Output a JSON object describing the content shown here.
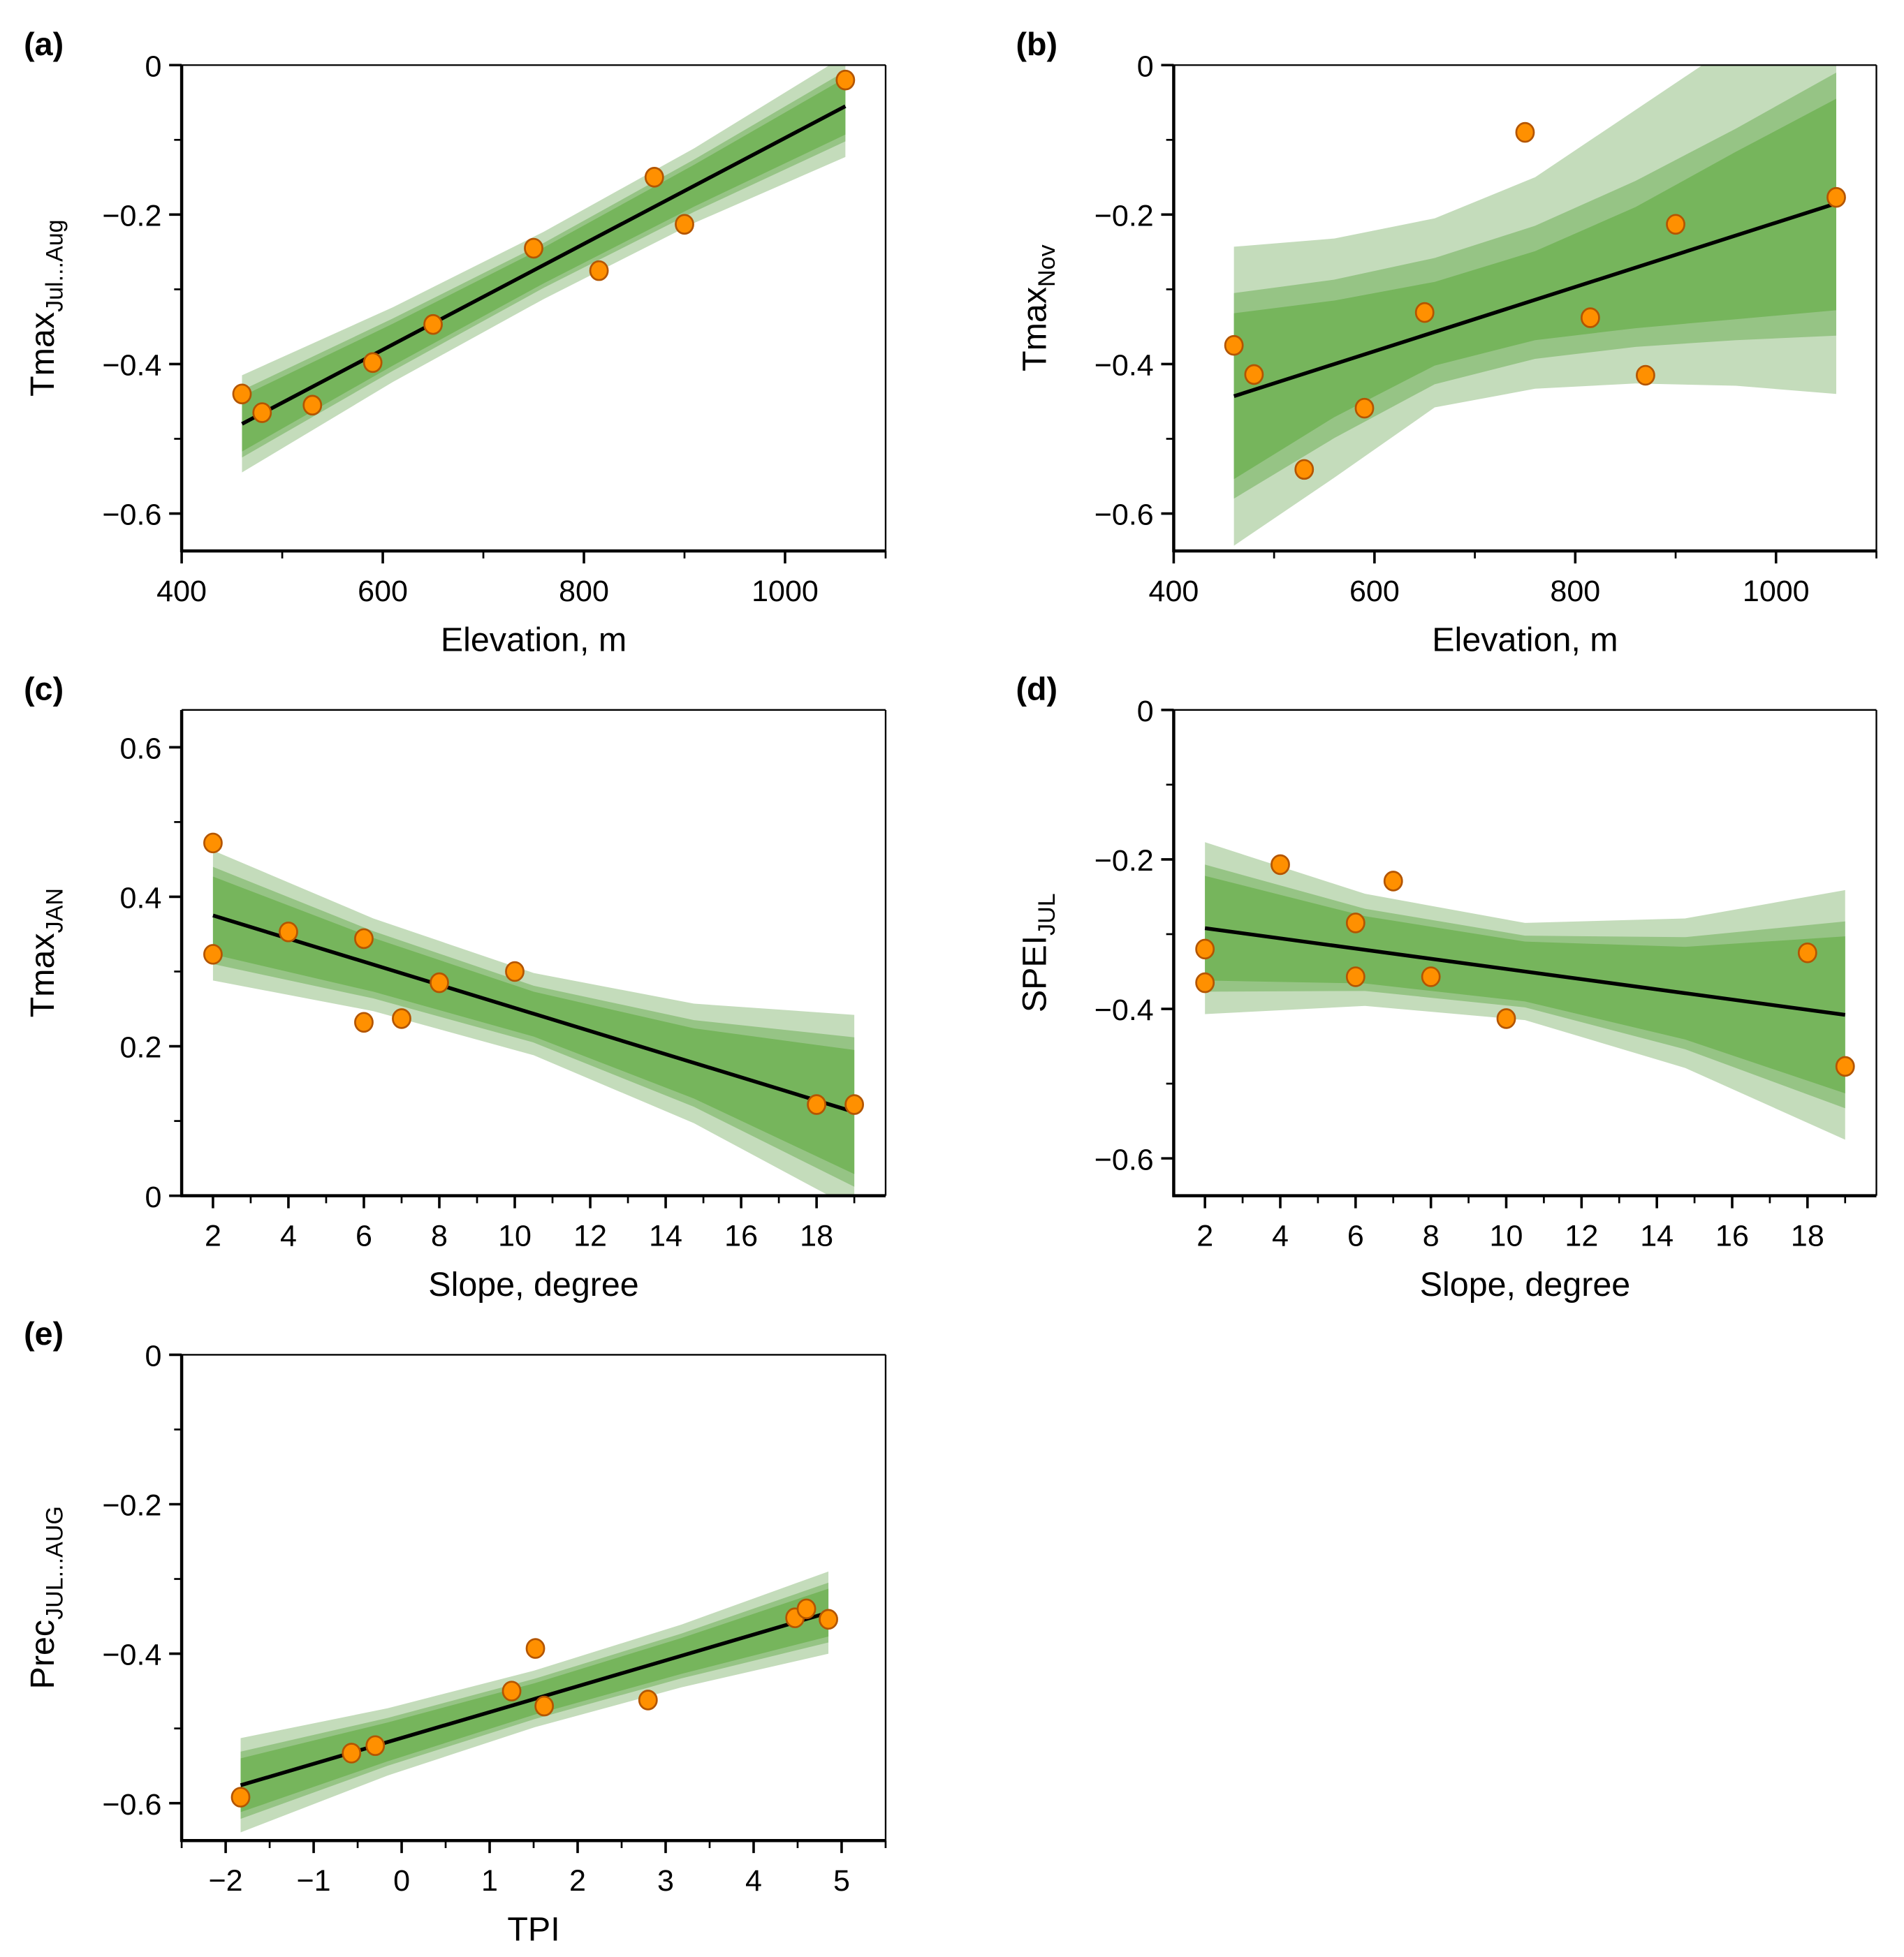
{
  "colors": {
    "band_outer": "#c4dcbb",
    "band_mid": "#96c485",
    "band_inner": "#76b55c",
    "line": "#000000",
    "point_fill": "#ff9000",
    "point_edge": "#b35500"
  },
  "chart_data": [
    {
      "panel": "(a)",
      "type": "scatter",
      "xlabel": "Elevation, m",
      "ylabel_main": "Tmax",
      "ylabel_sub": "Jul...Aug",
      "xlim": [
        400,
        1100
      ],
      "ylim": [
        -0.65,
        0
      ],
      "xticks": [
        400,
        600,
        800,
        1000
      ],
      "xtick_labels": [
        "400",
        "600",
        "800",
        "1000"
      ],
      "xminor_step": 100,
      "yticks": [
        -0.6,
        -0.4,
        -0.2,
        0
      ],
      "ytick_labels": [
        "−0.6",
        "−0.4",
        "−0.2",
        "0"
      ],
      "yminor_step": 0.1,
      "points": [
        [
          460,
          -0.44
        ],
        [
          480,
          -0.465
        ],
        [
          530,
          -0.455
        ],
        [
          590,
          -0.398
        ],
        [
          650,
          -0.347
        ],
        [
          750,
          -0.245
        ],
        [
          815,
          -0.275
        ],
        [
          870,
          -0.15
        ],
        [
          900,
          -0.213
        ],
        [
          1060,
          -0.02
        ]
      ],
      "fit_line": [
        [
          460,
          -0.48
        ],
        [
          1060,
          -0.055
        ]
      ],
      "bands": {
        "x": [
          460,
          610,
          760,
          910,
          1060
        ],
        "outer": [
          [
            -0.545,
            -0.415
          ],
          [
            -0.424,
            -0.324
          ],
          [
            -0.313,
            -0.223
          ],
          [
            -0.211,
            -0.111
          ],
          [
            -0.123,
            0.013
          ]
        ],
        "mid": [
          [
            -0.525,
            -0.435
          ],
          [
            -0.409,
            -0.339
          ],
          [
            -0.298,
            -0.238
          ],
          [
            -0.196,
            -0.126
          ],
          [
            -0.102,
            -0.008
          ]
        ],
        "inner": [
          [
            -0.517,
            -0.443
          ],
          [
            -0.402,
            -0.346
          ],
          [
            -0.292,
            -0.244
          ],
          [
            -0.189,
            -0.133
          ],
          [
            -0.093,
            -0.017
          ]
        ]
      }
    },
    {
      "panel": "(b)",
      "type": "scatter",
      "xlabel": "Elevation, m",
      "ylabel_main": "Tmax",
      "ylabel_sub": "Nov",
      "xlim": [
        400,
        1100
      ],
      "ylim": [
        -0.65,
        0
      ],
      "xticks": [
        400,
        600,
        800,
        1000
      ],
      "xtick_labels": [
        "400",
        "600",
        "800",
        "1000"
      ],
      "xminor_step": 100,
      "yticks": [
        -0.6,
        -0.4,
        -0.2,
        0
      ],
      "ytick_labels": [
        "−0.6",
        "−0.4",
        "−0.2",
        "0"
      ],
      "yminor_step": 0.1,
      "points": [
        [
          460,
          -0.375
        ],
        [
          480,
          -0.414
        ],
        [
          530,
          -0.541
        ],
        [
          590,
          -0.459
        ],
        [
          650,
          -0.331
        ],
        [
          750,
          -0.09
        ],
        [
          815,
          -0.338
        ],
        [
          870,
          -0.415
        ],
        [
          900,
          -0.213
        ],
        [
          1060,
          -0.177
        ]
      ],
      "fit_line": [
        [
          460,
          -0.443
        ],
        [
          1060,
          -0.185
        ]
      ],
      "bands": {
        "x": [
          460,
          560,
          660,
          760,
          860,
          960,
          1060
        ],
        "outer": [
          [
            -0.643,
            -0.243
          ],
          [
            -0.552,
            -0.232
          ],
          [
            -0.458,
            -0.205
          ],
          [
            -0.433,
            -0.15
          ],
          [
            -0.426,
            -0.06
          ],
          [
            -0.429,
            0.03
          ],
          [
            -0.44,
            0.12
          ]
        ],
        "mid": [
          [
            -0.58,
            -0.305
          ],
          [
            -0.499,
            -0.287
          ],
          [
            -0.427,
            -0.258
          ],
          [
            -0.393,
            -0.215
          ],
          [
            -0.377,
            -0.155
          ],
          [
            -0.368,
            -0.085
          ],
          [
            -0.362,
            -0.01
          ]
        ],
        "inner": [
          [
            -0.554,
            -0.332
          ],
          [
            -0.471,
            -0.315
          ],
          [
            -0.402,
            -0.29
          ],
          [
            -0.368,
            -0.249
          ],
          [
            -0.352,
            -0.19
          ],
          [
            -0.34,
            -0.116
          ],
          [
            -0.328,
            -0.045
          ]
        ]
      }
    },
    {
      "panel": "(c)",
      "type": "scatter",
      "xlabel": "Slope, degree",
      "ylabel_main": "Tmax",
      "ylabel_sub": "JAN",
      "xlim": [
        1.17,
        19.83
      ],
      "ylim": [
        0,
        0.65
      ],
      "xticks": [
        2,
        4,
        6,
        8,
        10,
        12,
        14,
        16,
        18
      ],
      "xtick_labels": [
        "2",
        "4",
        "6",
        "8",
        "10",
        "12",
        "14",
        "16",
        "18"
      ],
      "xminor_step": 1,
      "yticks": [
        0,
        0.2,
        0.4,
        0.6
      ],
      "ytick_labels": [
        "0",
        "0.2",
        "0.4",
        "0.6"
      ],
      "yminor_step": 0.1,
      "points": [
        [
          2,
          0.472
        ],
        [
          2,
          0.323
        ],
        [
          4,
          0.353
        ],
        [
          6,
          0.344
        ],
        [
          6,
          0.232
        ],
        [
          7,
          0.237
        ],
        [
          8,
          0.285
        ],
        [
          10,
          0.3
        ],
        [
          18,
          0.122
        ],
        [
          19,
          0.122
        ]
      ],
      "fit_line": [
        [
          2,
          0.375
        ],
        [
          19,
          0.112
        ]
      ],
      "bands": {
        "x": [
          2,
          6.25,
          10.5,
          14.75,
          19
        ],
        "outer": [
          [
            0.288,
            0.462
          ],
          [
            0.247,
            0.371
          ],
          [
            0.188,
            0.298
          ],
          [
            0.097,
            0.257
          ],
          [
            -0.018,
            0.242
          ]
        ],
        "mid": [
          [
            0.31,
            0.44
          ],
          [
            0.264,
            0.354
          ],
          [
            0.205,
            0.281
          ],
          [
            0.119,
            0.235
          ],
          [
            0.012,
            0.212
          ]
        ],
        "inner": [
          [
            0.323,
            0.427
          ],
          [
            0.273,
            0.345
          ],
          [
            0.213,
            0.273
          ],
          [
            0.13,
            0.224
          ],
          [
            0.029,
            0.195
          ]
        ]
      }
    },
    {
      "panel": "(d)",
      "type": "scatter",
      "xlabel": "Slope, degree",
      "ylabel_main": "SPEI",
      "ylabel_sub": "JUL",
      "xlim": [
        1.17,
        19.83
      ],
      "ylim": [
        -0.65,
        0
      ],
      "xticks": [
        2,
        4,
        6,
        8,
        10,
        12,
        14,
        16,
        18
      ],
      "xtick_labels": [
        "2",
        "4",
        "6",
        "8",
        "10",
        "12",
        "14",
        "16",
        "18"
      ],
      "xminor_step": 1,
      "yticks": [
        -0.6,
        -0.4,
        -0.2,
        0
      ],
      "ytick_labels": [
        "−0.6",
        "−0.4",
        "−0.2",
        "0"
      ],
      "yminor_step": 0.1,
      "points": [
        [
          2,
          -0.32
        ],
        [
          2,
          -0.365
        ],
        [
          4,
          -0.207
        ],
        [
          6,
          -0.285
        ],
        [
          6,
          -0.357
        ],
        [
          7,
          -0.229
        ],
        [
          8,
          -0.357
        ],
        [
          10,
          -0.413
        ],
        [
          18,
          -0.325
        ],
        [
          19,
          -0.477
        ]
      ],
      "fit_line": [
        [
          2,
          -0.292
        ],
        [
          19,
          -0.408
        ]
      ],
      "bands": {
        "x": [
          2,
          6.25,
          10.5,
          14.75,
          19
        ],
        "outer": [
          [
            -0.407,
            -0.177
          ],
          [
            -0.396,
            -0.246
          ],
          [
            -0.415,
            -0.285
          ],
          [
            -0.479,
            -0.279
          ],
          [
            -0.575,
            -0.241
          ]
        ],
        "mid": [
          [
            -0.377,
            -0.207
          ],
          [
            -0.376,
            -0.266
          ],
          [
            -0.398,
            -0.302
          ],
          [
            -0.454,
            -0.304
          ],
          [
            -0.533,
            -0.283
          ]
        ],
        "inner": [
          [
            -0.362,
            -0.222
          ],
          [
            -0.366,
            -0.276
          ],
          [
            -0.39,
            -0.31
          ],
          [
            -0.441,
            -0.317
          ],
          [
            -0.513,
            -0.303
          ]
        ]
      }
    },
    {
      "panel": "(e)",
      "type": "scatter",
      "xlabel": "TPI",
      "ylabel_main": "Prec",
      "ylabel_sub": "JUL...AUG",
      "xlim": [
        -2.5,
        5.5
      ],
      "ylim": [
        -0.65,
        0
      ],
      "xticks": [
        -2,
        -1,
        0,
        1,
        2,
        3,
        4,
        5
      ],
      "xtick_labels": [
        "−2",
        "−1",
        "0",
        "1",
        "2",
        "3",
        "4",
        "5"
      ],
      "xminor_step": 0.5,
      "yticks": [
        -0.6,
        -0.4,
        -0.2,
        0
      ],
      "ytick_labels": [
        "−0.6",
        "−0.4",
        "−0.2",
        "0"
      ],
      "yminor_step": 0.1,
      "points": [
        [
          -1.83,
          -0.592
        ],
        [
          -0.57,
          -0.533
        ],
        [
          -0.3,
          -0.523
        ],
        [
          1.25,
          -0.45
        ],
        [
          1.52,
          -0.393
        ],
        [
          1.62,
          -0.47
        ],
        [
          2.8,
          -0.462
        ],
        [
          4.47,
          -0.352
        ],
        [
          4.6,
          -0.34
        ],
        [
          4.85,
          -0.354
        ]
      ],
      "fit_line": [
        [
          -1.83,
          -0.576
        ],
        [
          4.85,
          -0.345
        ]
      ],
      "bands": {
        "x": [
          -1.83,
          -0.16,
          1.51,
          3.18,
          4.85
        ],
        "outer": [
          [
            -0.639,
            -0.513
          ],
          [
            -0.563,
            -0.473
          ],
          [
            -0.4985,
            -0.4225
          ],
          [
            -0.445,
            -0.361
          ],
          [
            -0.4,
            -0.29
          ]
        ],
        "mid": [
          [
            -0.621,
            -0.531
          ],
          [
            -0.55,
            -0.486
          ],
          [
            -0.4875,
            -0.4335
          ],
          [
            -0.433,
            -0.373
          ],
          [
            -0.385,
            -0.305
          ]
        ],
        "inner": [
          [
            -0.612,
            -0.54
          ],
          [
            -0.544,
            -0.492
          ],
          [
            -0.4815,
            -0.4395
          ],
          [
            -0.427,
            -0.379
          ],
          [
            -0.377,
            -0.313
          ]
        ]
      }
    }
  ]
}
